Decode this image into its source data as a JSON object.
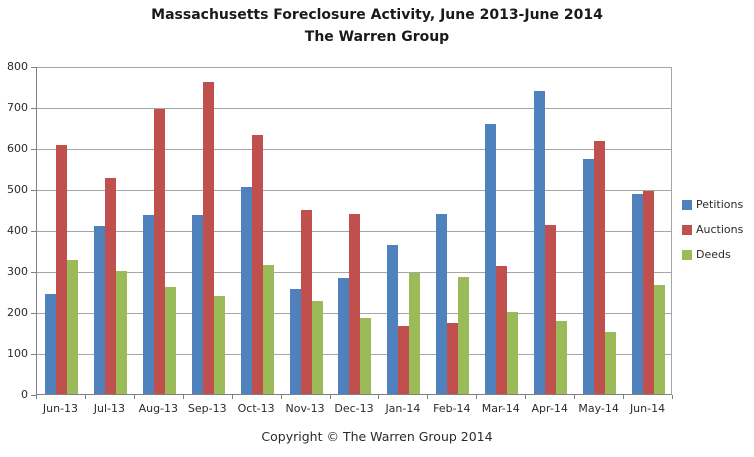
{
  "title": {
    "line1": "Massachusetts Foreclosure Activity, June 2013-June 2014",
    "line2": "The Warren Group"
  },
  "footer": {
    "copyright": "Copyright © The Warren Group 2014"
  },
  "chart_data": {
    "type": "bar",
    "title": "Massachusetts Foreclosure Activity, June 2013-June 2014",
    "subtitle": "The Warren Group",
    "categories": [
      "Jun-13",
      "Jul-13",
      "Aug-13",
      "Sep-13",
      "Oct-13",
      "Nov-13",
      "Dec-13",
      "Jan-14",
      "Feb-14",
      "Mar-14",
      "Apr-14",
      "May-14",
      "Jun-14"
    ],
    "series": [
      {
        "name": "Petitions",
        "color": "#4F81BD",
        "values": [
          245,
          409,
          437,
          436,
          505,
          257,
          284,
          364,
          439,
          659,
          740,
          572,
          487
        ]
      },
      {
        "name": "Auctions",
        "color": "#C0504D",
        "values": [
          607,
          528,
          694,
          762,
          631,
          449,
          439,
          166,
          173,
          312,
          411,
          616,
          494
        ]
      },
      {
        "name": "Deeds",
        "color": "#9BBB59",
        "values": [
          328,
          300,
          260,
          238,
          315,
          228,
          185,
          294,
          286,
          201,
          177,
          151,
          266
        ]
      }
    ],
    "xlabel": "",
    "ylabel": "",
    "ylim": [
      0,
      800
    ],
    "ytick_step": 100,
    "grid": true,
    "legend_position": "right",
    "grid_color": "#A6A6A6",
    "axis_color": "#808080"
  }
}
